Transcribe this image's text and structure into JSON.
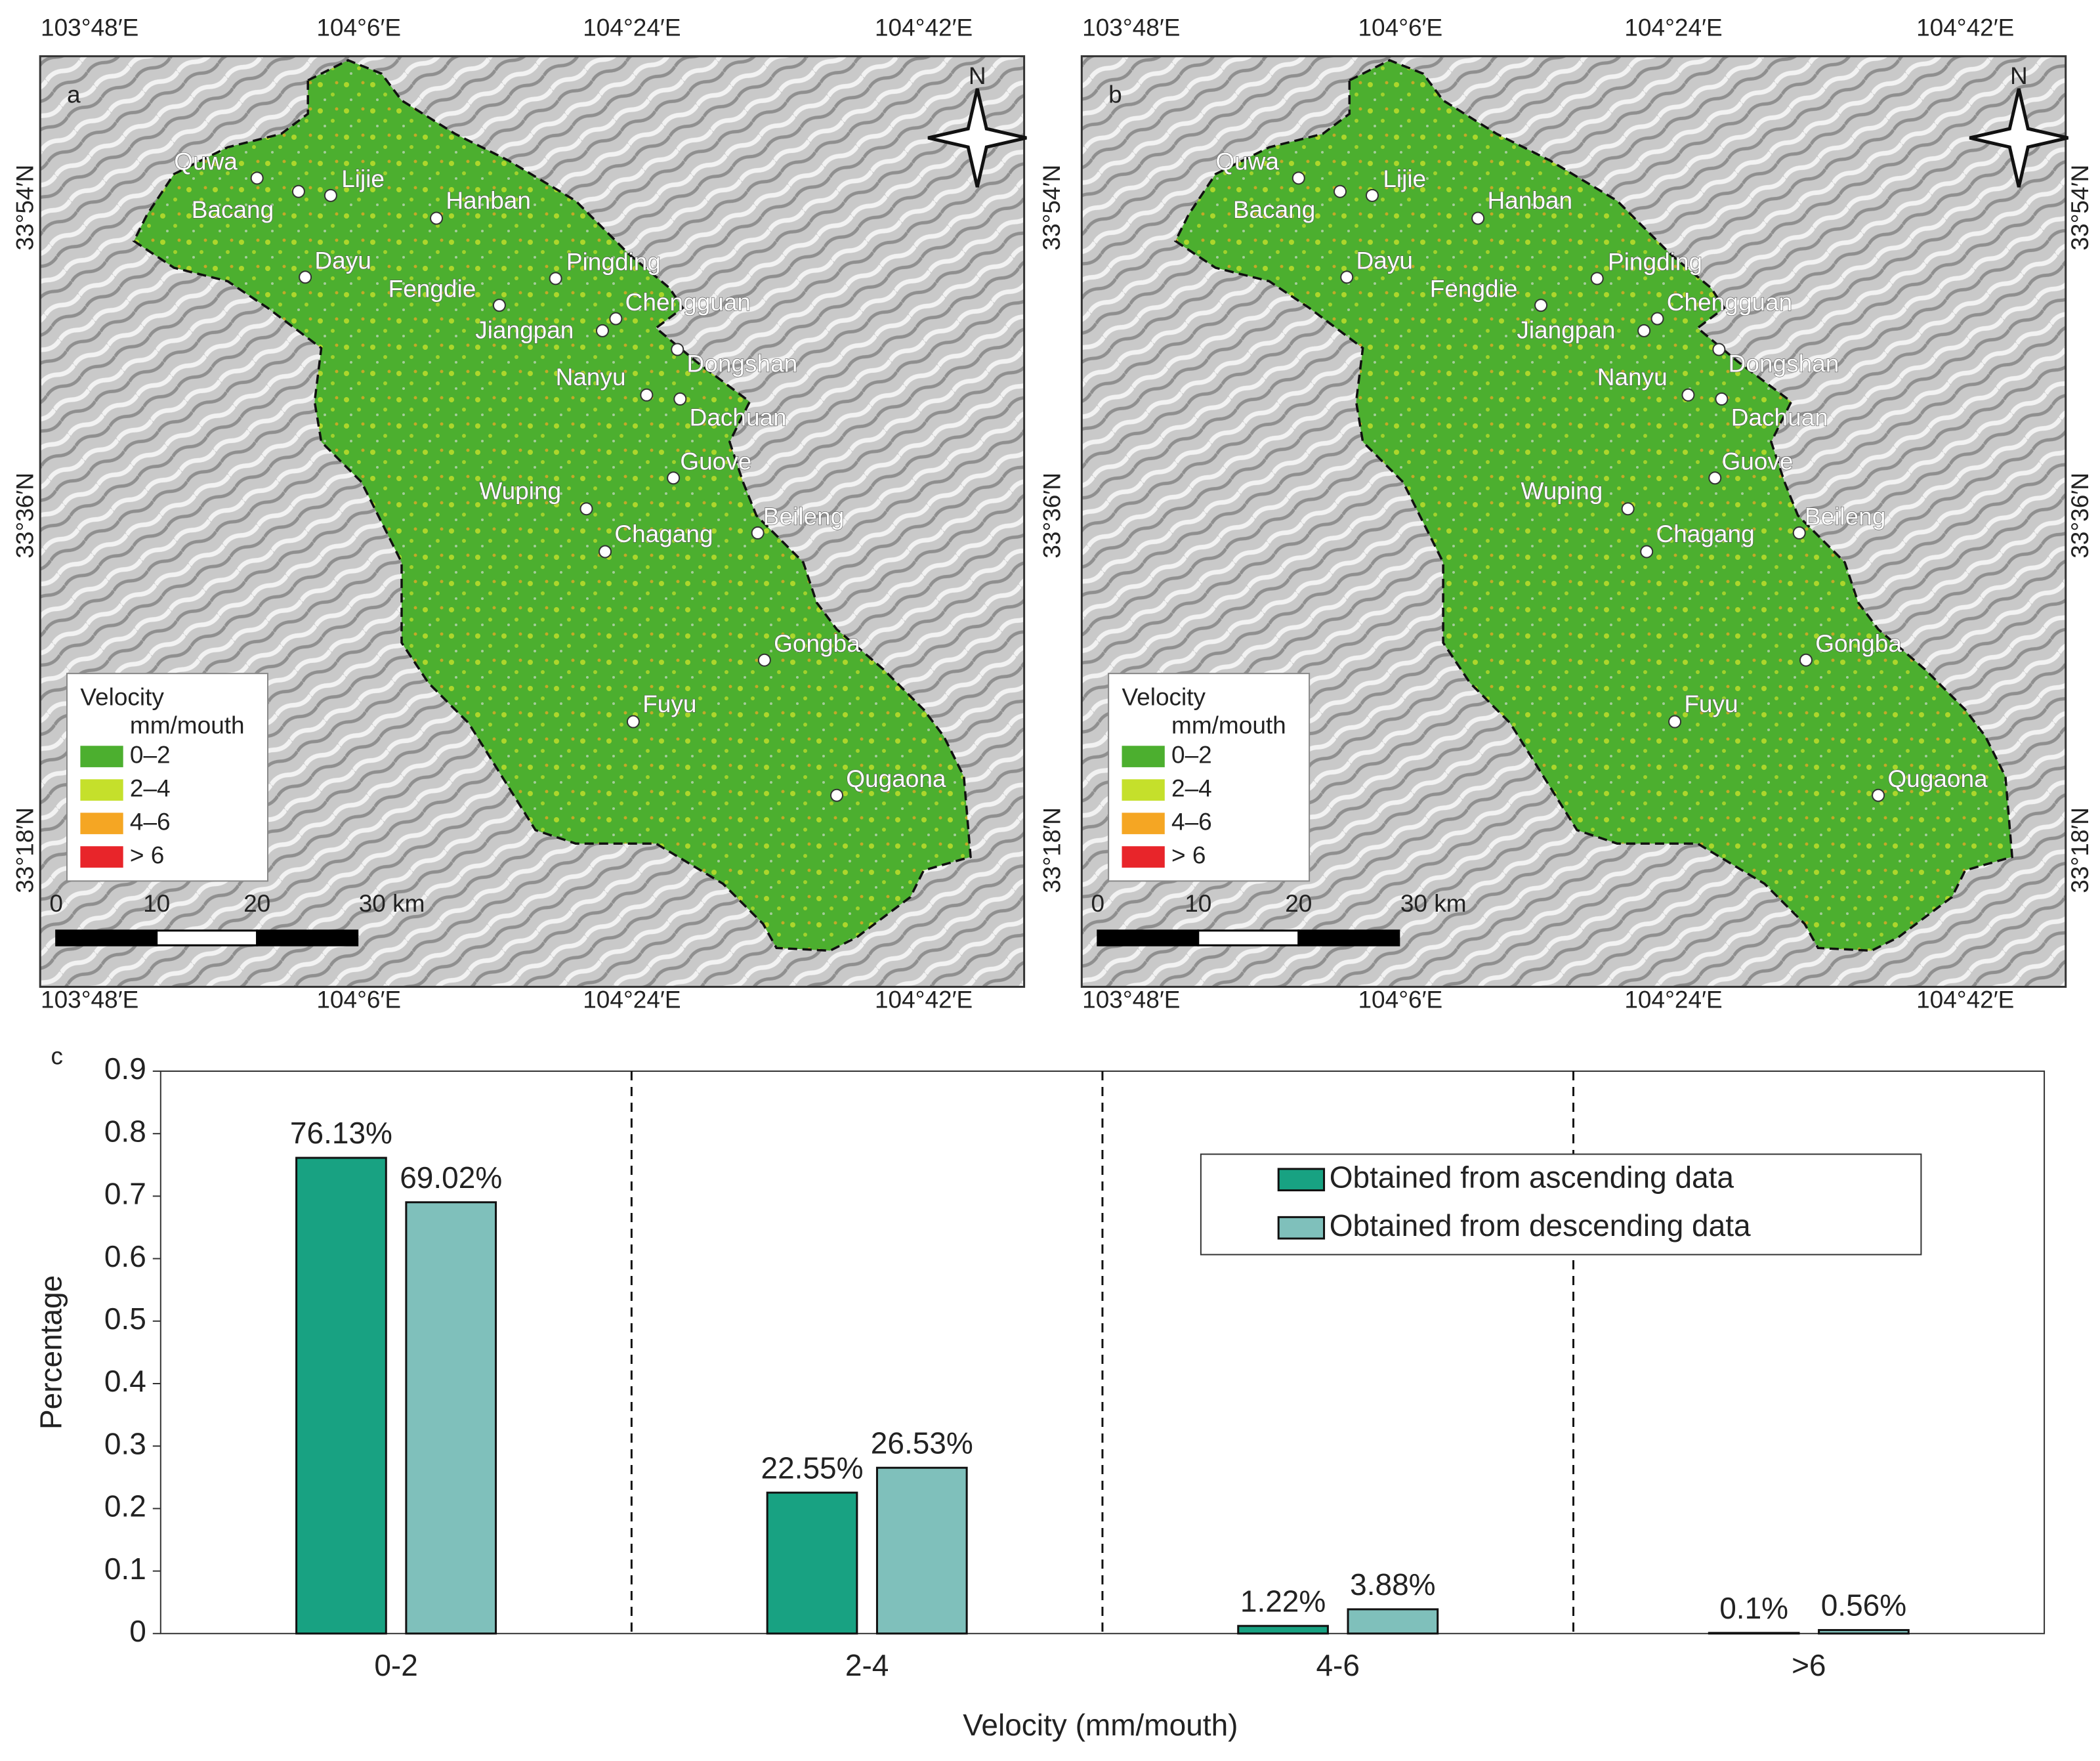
{
  "maps": [
    {
      "label": "a",
      "lon_labels": [
        "103°48′E",
        "104°6′E",
        "104°24′E",
        "104°42′E"
      ],
      "lat_labels": [
        "33°54′N",
        "33°36′N",
        "33°18′N"
      ],
      "north": "N",
      "legend": {
        "title": "Velocity",
        "unit": "mm/mouth",
        "items": [
          {
            "label": "0–2",
            "color": "#4caf2f"
          },
          {
            "label": "2–4",
            "color": "#c5e02b"
          },
          {
            "label": "4–6",
            "color": "#f5a623"
          },
          {
            "label": "> 6",
            "color": "#e8252a"
          }
        ]
      },
      "scale_labels": [
        "0",
        "10",
        "20",
        "30 km"
      ],
      "places": [
        "Quwa",
        "Bacang",
        "Lijie",
        "Hanban",
        "Dayu",
        "Pingding",
        "Fengdie",
        "Chengguan",
        "Jiangpan",
        "Dongshan",
        "Nanyu",
        "Dachuan",
        "Guove",
        "Wuping",
        "Beileng",
        "Chagang",
        "Gongba",
        "Fuyu",
        "Qugaona"
      ]
    },
    {
      "label": "b",
      "lon_labels": [
        "103°48′E",
        "104°6′E",
        "104°24′E",
        "104°42′E"
      ],
      "lat_labels": [
        "33°54′N",
        "33°36′N",
        "33°18′N"
      ],
      "north": "N",
      "legend": {
        "title": "Velocity",
        "unit": "mm/mouth",
        "items": [
          {
            "label": "0–2",
            "color": "#4caf2f"
          },
          {
            "label": "2–4",
            "color": "#c5e02b"
          },
          {
            "label": "4–6",
            "color": "#f5a623"
          },
          {
            "label": "> 6",
            "color": "#e8252a"
          }
        ]
      },
      "scale_labels": [
        "0",
        "10",
        "20",
        "30 km"
      ],
      "places": [
        "Quwa",
        "Bacang",
        "Lijie",
        "Hanban",
        "Dayu",
        "Pingding",
        "Fengdie",
        "Chengguan",
        "Jiangpan",
        "Dongshan",
        "Nanyu",
        "Dachuan",
        "Guove",
        "Wuping",
        "Beileng",
        "Chagang",
        "Gongba",
        "Fuyu",
        "Qugaona"
      ]
    }
  ],
  "chart_data": {
    "type": "bar",
    "panel_label": "c",
    "categories": [
      "0-2",
      "2-4",
      "4-6",
      ">6"
    ],
    "series": [
      {
        "name": "Obtained from ascending data",
        "color": "#18a282",
        "values": [
          0.7613,
          0.2255,
          0.0122,
          0.001
        ],
        "value_labels": [
          "76.13%",
          "22.55%",
          "1.22%",
          "0.1%"
        ]
      },
      {
        "name": "Obtained from descending data",
        "color": "#7fc0bb",
        "values": [
          0.6902,
          0.2653,
          0.0388,
          0.0056
        ],
        "value_labels": [
          "69.02%",
          "26.53%",
          "3.88%",
          "0.56%"
        ]
      }
    ],
    "x_label": "Velocity (mm/mouth)",
    "y_label": "Percentage",
    "ylim": [
      0,
      0.9
    ],
    "yticks": [
      0,
      0.1,
      0.2,
      0.3,
      0.4,
      0.5,
      0.6,
      0.7,
      0.8,
      0.9
    ],
    "legend": "upper right"
  }
}
